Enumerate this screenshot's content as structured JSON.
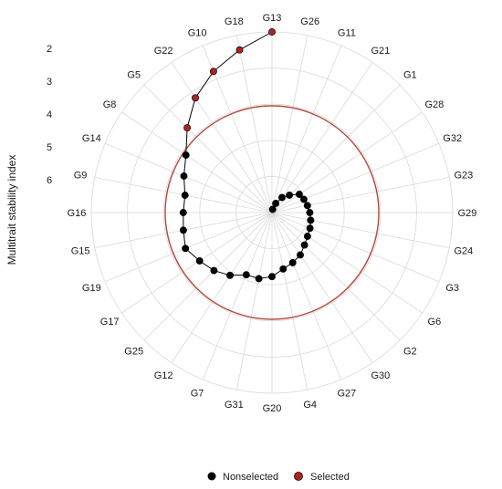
{
  "chart_data": {
    "type": "scatter",
    "coordinate_system": "polar",
    "ylabel": "Multitrait stability index",
    "yticks": [
      "2",
      "3",
      "4",
      "5",
      "6"
    ],
    "radial_scale": "reversed (smaller MTSI plotted farther from center)",
    "legend": {
      "position": "bottom",
      "entries": [
        "Nonselected",
        "Selected"
      ]
    },
    "colors": {
      "nonselected": "#000000",
      "selected": "#b22222",
      "cutoff_circle": "#b5493a",
      "grid": "#d9d9d9"
    },
    "genotypes": [
      "G13",
      "G26",
      "G11",
      "G21",
      "G1",
      "G28",
      "G32",
      "G23",
      "G29",
      "G24",
      "G3",
      "G6",
      "G2",
      "G30",
      "G27",
      "G4",
      "G20",
      "G31",
      "G7",
      "G12",
      "G25",
      "G17",
      "G19",
      "G15",
      "G16",
      "G9",
      "G14",
      "G8",
      "G5",
      "G22",
      "G10",
      "G18"
    ],
    "values": [
      1.5,
      6.9,
      6.7,
      6.45,
      6.25,
      6.0,
      5.95,
      5.9,
      5.85,
      5.8,
      5.75,
      5.7,
      5.6,
      5.45,
      5.35,
      5.25,
      5.05,
      4.95,
      4.95,
      4.7,
      4.5,
      4.35,
      4.15,
      4.25,
      4.3,
      4.3,
      4.1,
      3.85,
      3.35,
      2.8,
      2.35,
      1.95
    ],
    "selected": [
      "G13",
      "G18",
      "G10",
      "G22",
      "G5"
    ],
    "cutoff": 3.75,
    "ylim": [
      1.5,
      7.0
    ]
  }
}
